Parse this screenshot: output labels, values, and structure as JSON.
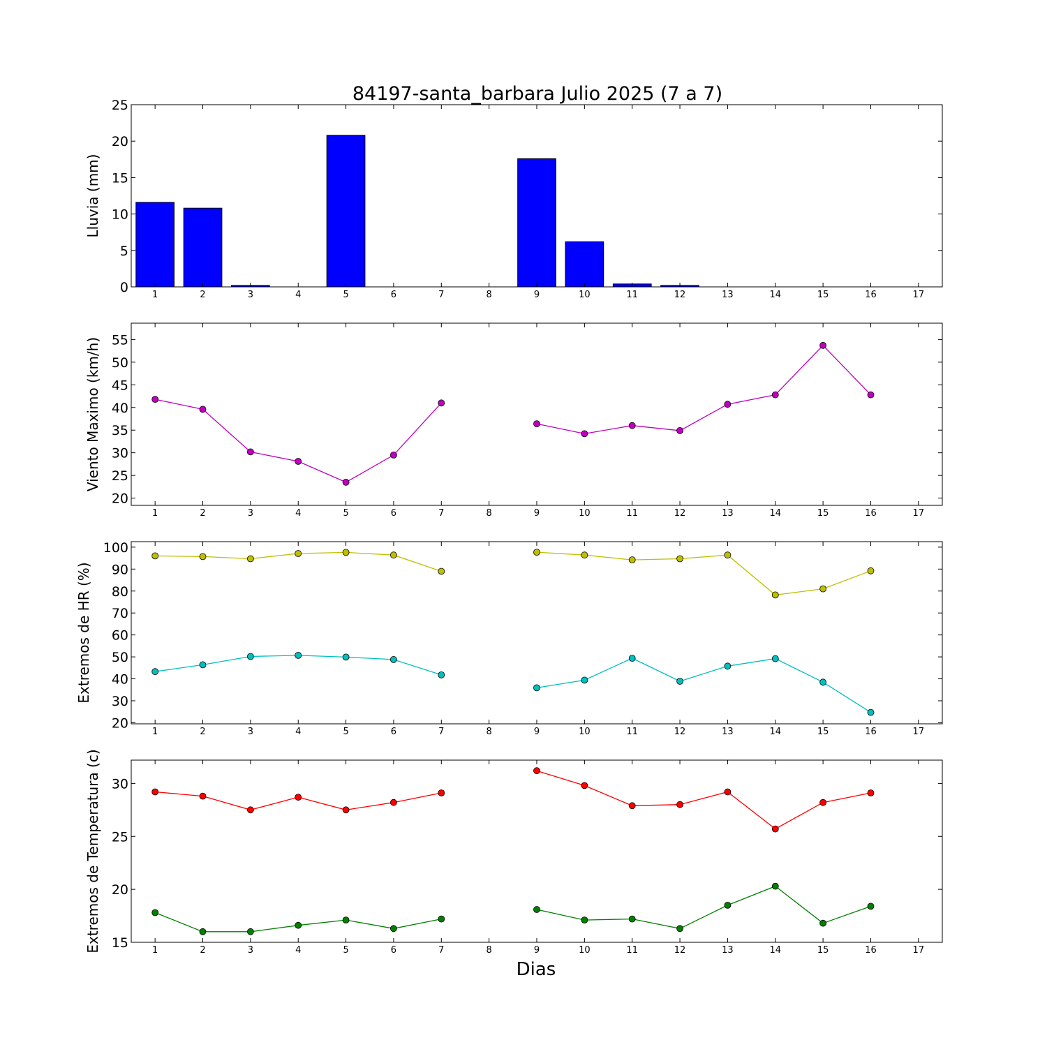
{
  "figure": {
    "title": "84197-santa_barbara Julio 2025  (7 a 7)",
    "xlabel": "Dias"
  },
  "chart_data": [
    {
      "type": "bar",
      "ylabel": "Lluvia (mm)",
      "ylim": [
        0,
        25
      ],
      "yticks": [
        0,
        5,
        10,
        15,
        20,
        25
      ],
      "xlim": [
        0.5,
        17.5
      ],
      "xticks": [
        1,
        2,
        3,
        4,
        5,
        6,
        7,
        8,
        9,
        10,
        11,
        12,
        13,
        14,
        15,
        16,
        17
      ],
      "grid": false,
      "color": "#0000ff",
      "x": [
        1,
        2,
        3,
        4,
        5,
        6,
        7,
        8,
        9,
        10,
        11,
        12,
        13,
        14,
        15,
        16,
        17
      ],
      "values": [
        11.6,
        10.8,
        0.2,
        0.0,
        20.8,
        0.0,
        0.0,
        null,
        17.6,
        6.2,
        0.4,
        0.2,
        0.0,
        0.0,
        0.0,
        0.0,
        null
      ]
    },
    {
      "type": "line",
      "ylabel": "Viento Maximo (km/h)",
      "ylim": [
        18.4,
        58.6
      ],
      "yticks": [
        20,
        25,
        30,
        35,
        40,
        45,
        50,
        55
      ],
      "xlim": [
        0.5,
        17.5
      ],
      "xticks": [
        1,
        2,
        3,
        4,
        5,
        6,
        7,
        8,
        9,
        10,
        11,
        12,
        13,
        14,
        15,
        16,
        17
      ],
      "grid": false,
      "x": [
        1,
        2,
        3,
        4,
        5,
        6,
        7,
        8,
        9,
        10,
        11,
        12,
        13,
        14,
        15,
        16,
        17
      ],
      "series": [
        {
          "color": "#bf00bf",
          "values": [
            41.8,
            39.6,
            30.2,
            28.1,
            23.5,
            29.5,
            41.0,
            null,
            36.4,
            34.2,
            36.0,
            34.9,
            40.7,
            42.8,
            53.7,
            42.8,
            null
          ]
        }
      ]
    },
    {
      "type": "line",
      "ylabel": "Extremos de HR (%)",
      "ylim": [
        19.5,
        102.5
      ],
      "yticks": [
        20,
        30,
        40,
        50,
        60,
        70,
        80,
        90,
        100
      ],
      "xlim": [
        0.5,
        17.5
      ],
      "xticks": [
        1,
        2,
        3,
        4,
        5,
        6,
        7,
        8,
        9,
        10,
        11,
        12,
        13,
        14,
        15,
        16,
        17
      ],
      "grid": false,
      "x": [
        1,
        2,
        3,
        4,
        5,
        6,
        7,
        8,
        9,
        10,
        11,
        12,
        13,
        14,
        15,
        16,
        17
      ],
      "series": [
        {
          "color": "#bfbf00",
          "values": [
            96,
            95.7,
            94.7,
            97.1,
            97.6,
            96.4,
            89,
            null,
            97.7,
            96.4,
            94.2,
            94.7,
            96.4,
            78.2,
            81,
            89.2,
            null
          ]
        },
        {
          "color": "#00bfbf",
          "values": [
            43.3,
            46.4,
            50.2,
            50.7,
            49.9,
            48.8,
            41.8,
            null,
            35.9,
            39.4,
            49.4,
            38.9,
            45.8,
            49.2,
            38.5,
            24.7,
            null
          ]
        }
      ]
    },
    {
      "type": "line",
      "ylabel": "Extremos de Temperatura (c)",
      "ylim": [
        15,
        32.2
      ],
      "yticks": [
        15,
        20,
        25,
        30
      ],
      "xlim": [
        0.5,
        17.5
      ],
      "xticks": [
        1,
        2,
        3,
        4,
        5,
        6,
        7,
        8,
        9,
        10,
        11,
        12,
        13,
        14,
        15,
        16,
        17
      ],
      "grid": false,
      "x": [
        1,
        2,
        3,
        4,
        5,
        6,
        7,
        8,
        9,
        10,
        11,
        12,
        13,
        14,
        15,
        16,
        17
      ],
      "series": [
        {
          "color": "#ff0000",
          "values": [
            29.2,
            28.8,
            27.5,
            28.7,
            27.5,
            28.2,
            29.1,
            null,
            31.2,
            29.8,
            27.9,
            28.0,
            29.2,
            25.7,
            28.2,
            29.1,
            null
          ]
        },
        {
          "color": "#008000",
          "values": [
            17.8,
            16.0,
            16.0,
            16.6,
            17.1,
            16.3,
            17.2,
            null,
            18.1,
            17.1,
            17.2,
            16.3,
            18.5,
            20.3,
            16.8,
            18.4,
            null
          ]
        }
      ]
    }
  ]
}
